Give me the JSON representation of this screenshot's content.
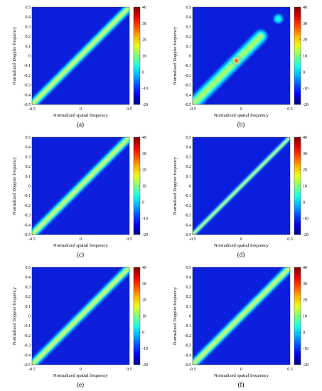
{
  "chart_data": [
    {
      "type": "heatmap",
      "caption": "(a)",
      "xlabel": "Normalized spatial frequency",
      "ylabel": "Normalized Doppler frequency",
      "xlim": [
        -0.5,
        0.5
      ],
      "ylim": [
        -0.5,
        0.5
      ],
      "xticks": [
        "-0.5",
        "0",
        "0.5"
      ],
      "yticks": [
        "0.5",
        "0.4",
        "0.3",
        "0.2",
        "0.1",
        "0",
        "-0.1",
        "-0.2",
        "-0.3",
        "-0.4",
        "-0.5"
      ],
      "colorbar_ticks": [
        "40",
        "30",
        "20",
        "10",
        "0",
        "-10",
        "-20"
      ],
      "colorbar_range": [
        -20,
        40
      ],
      "ridge": {
        "from": [
          -0.5,
          -0.5
        ],
        "to": [
          0.5,
          0.5
        ],
        "peak_level": 15,
        "width": "medium"
      },
      "hotspots": []
    },
    {
      "type": "heatmap",
      "caption": "(b)",
      "xlabel": "Normalized spatial frequency",
      "ylabel": "Normalized Doppler frequency",
      "xlim": [
        -0.5,
        0.5
      ],
      "ylim": [
        -0.5,
        0.5
      ],
      "xticks": [
        "-0.5",
        "0",
        "0.5"
      ],
      "yticks": [
        "0.5",
        "0.4",
        "0.3",
        "0.2",
        "0.1",
        "0",
        "-0.1",
        "-0.2",
        "-0.3",
        "-0.4",
        "-0.5"
      ],
      "colorbar_ticks": [
        "40",
        "30",
        "20",
        "10",
        "0",
        "-10",
        "-20"
      ],
      "colorbar_range": [
        -20,
        40
      ],
      "ridge": {
        "from": [
          -0.5,
          -0.5
        ],
        "to": [
          0.2,
          0.2
        ],
        "peak_level": 12,
        "width": "wide"
      },
      "hotspots": [
        {
          "x": -0.05,
          "y": -0.05,
          "level": 40
        },
        {
          "x": 0.38,
          "y": 0.38,
          "level": 5
        }
      ]
    },
    {
      "type": "heatmap",
      "caption": "(c)",
      "xlabel": "Normalized spatial frequency",
      "ylabel": "Normalized Doppler frequency",
      "xlim": [
        -0.5,
        0.5
      ],
      "ylim": [
        -0.5,
        0.5
      ],
      "xticks": [
        "-0.5",
        "0",
        "0.5"
      ],
      "yticks": [
        "0.5",
        "0.4",
        "0.3",
        "0.2",
        "0.1",
        "0",
        "-0.1",
        "-0.2",
        "-0.3",
        "-0.4",
        "-0.5"
      ],
      "colorbar_ticks": [
        "40",
        "30",
        "20",
        "10",
        "0",
        "-10",
        "-20"
      ],
      "colorbar_range": [
        -20,
        40
      ],
      "ridge": {
        "from": [
          -0.5,
          -0.5
        ],
        "to": [
          0.5,
          0.5
        ],
        "peak_level": 15,
        "width": "medium"
      },
      "hotspots": []
    },
    {
      "type": "heatmap",
      "caption": "(d)",
      "xlabel": "Normalized spatial frequency",
      "ylabel": "Normalized Doppler frequency",
      "xlim": [
        -0.5,
        0.5
      ],
      "ylim": [
        -0.5,
        0.5
      ],
      "xticks": [
        "-0.5",
        "0",
        "0.5"
      ],
      "yticks": [
        "0.5",
        "0.4",
        "0.3",
        "0.2",
        "0.1",
        "0",
        "-0.1",
        "-0.2",
        "-0.3",
        "-0.4",
        "-0.5"
      ],
      "colorbar_ticks": [
        "40",
        "30",
        "20",
        "10",
        "0",
        "-10",
        "-20"
      ],
      "colorbar_range": [
        -20,
        40
      ],
      "ridge": {
        "from": [
          -0.5,
          -0.5
        ],
        "to": [
          0.5,
          0.5
        ],
        "peak_level": 15,
        "width": "narrow"
      },
      "hotspots": []
    },
    {
      "type": "heatmap",
      "caption": "(e)",
      "xlabel": "Normalized spatial frequency",
      "ylabel": "Normalized Doppler frequency",
      "xlim": [
        -0.5,
        0.5
      ],
      "ylim": [
        -0.5,
        0.5
      ],
      "xticks": [
        "-0.5",
        "0",
        "0.5"
      ],
      "yticks": [
        "0.5",
        "0.4",
        "0.3",
        "0.2",
        "0.1",
        "0",
        "-0.1",
        "-0.2",
        "-0.3",
        "-0.4",
        "-0.5"
      ],
      "colorbar_ticks": [
        "40",
        "30",
        "20",
        "10",
        "0",
        "-10",
        "-20"
      ],
      "colorbar_range": [
        -20,
        40
      ],
      "ridge": {
        "from": [
          -0.5,
          -0.5
        ],
        "to": [
          0.5,
          0.5
        ],
        "peak_level": 15,
        "width": "medium"
      },
      "hotspots": []
    },
    {
      "type": "heatmap",
      "caption": "(f)",
      "xlabel": "Normalized spatial frequency",
      "ylabel": "Normalized Doppler frequency",
      "xlim": [
        -0.5,
        0.5
      ],
      "ylim": [
        -0.5,
        0.5
      ],
      "xticks": [
        "-0.5",
        "0",
        "0.5"
      ],
      "yticks": [
        "0.5",
        "0.4",
        "0.3",
        "0.2",
        "0.1",
        "0",
        "-0.1",
        "-0.2",
        "-0.3",
        "-0.4",
        "-0.5"
      ],
      "colorbar_ticks": [
        "40",
        "30",
        "20",
        "10",
        "0",
        "-10",
        "-20"
      ],
      "colorbar_range": [
        -20,
        40
      ],
      "ridge": {
        "from": [
          -0.5,
          -0.5
        ],
        "to": [
          0.5,
          0.5
        ],
        "peak_level": 15,
        "width": "medium"
      },
      "hotspots": []
    }
  ],
  "colors": {
    "background_field": "#0a1edc",
    "colormap": [
      "#00008f",
      "#0000ff",
      "#00ffff",
      "#ffff00",
      "#ff0000",
      "#800000"
    ]
  }
}
